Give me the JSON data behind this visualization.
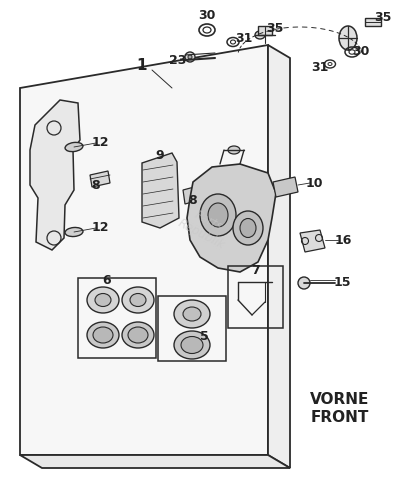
{
  "bg_color": "#ffffff",
  "line_color": "#2a2a2a",
  "label_color": "#222222",
  "watermark_color": "#cccccc",
  "watermark_text": "Parts­Republik",
  "vorne_front_text": [
    "VORNE",
    "FRONT"
  ],
  "figsize": [
    4.15,
    4.79
  ],
  "dpi": 100
}
